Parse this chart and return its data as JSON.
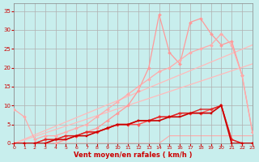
{
  "background_color": "#c8eeed",
  "grid_color": "#b0b0b0",
  "xlabel": "Vent moyen/en rafales ( km/h )",
  "ylim": [
    0,
    37
  ],
  "xlim": [
    0,
    23
  ],
  "yticks": [
    0,
    5,
    10,
    15,
    20,
    25,
    30,
    35
  ],
  "xticks": [
    0,
    1,
    2,
    3,
    4,
    5,
    6,
    7,
    8,
    9,
    10,
    11,
    12,
    13,
    14,
    15,
    16,
    17,
    18,
    19,
    20,
    21,
    22,
    23
  ],
  "series": [
    {
      "x": [
        0,
        1,
        2,
        3,
        4,
        5,
        6,
        7,
        8,
        9,
        10,
        11,
        12,
        13,
        14,
        15,
        16,
        17,
        18,
        19,
        20,
        21,
        22,
        23
      ],
      "y": [
        0,
        0,
        0,
        0,
        0,
        0,
        0,
        0,
        0,
        0,
        0,
        0,
        0,
        0,
        0,
        2,
        2,
        2,
        2,
        2,
        2,
        2,
        2,
        2
      ],
      "color": "#ffaaaa",
      "marker": null,
      "markersize": 0,
      "linewidth": 0.8,
      "zorder": 1
    },
    {
      "x": [
        0,
        23
      ],
      "y": [
        0,
        26
      ],
      "color": "#ffbbbb",
      "marker": null,
      "markersize": 0,
      "linewidth": 0.9,
      "zorder": 2
    },
    {
      "x": [
        0,
        23
      ],
      "y": [
        0,
        21
      ],
      "color": "#ffbbbb",
      "marker": null,
      "markersize": 0,
      "linewidth": 0.9,
      "zorder": 2
    },
    {
      "x": [
        0,
        1,
        2,
        3,
        4,
        5,
        6,
        7,
        8,
        9,
        10,
        11,
        12,
        13,
        14,
        15,
        16,
        17,
        18,
        19,
        20,
        21,
        22,
        23
      ],
      "y": [
        0,
        0,
        0,
        0,
        0,
        1,
        2,
        3,
        4,
        6,
        8,
        10,
        14,
        20,
        34,
        24,
        21,
        32,
        33,
        29,
        26,
        27,
        18,
        3
      ],
      "color": "#ff9999",
      "marker": "D",
      "markersize": 2.0,
      "linewidth": 0.9,
      "zorder": 3
    },
    {
      "x": [
        0,
        1,
        2,
        3,
        4,
        5,
        6,
        7,
        8,
        9,
        10,
        11,
        12,
        13,
        14,
        15,
        16,
        17,
        18,
        19,
        20,
        21,
        22,
        23
      ],
      "y": [
        9,
        7,
        1,
        2,
        2,
        3,
        4,
        5,
        7,
        9,
        11,
        13,
        15,
        17,
        19,
        20,
        22,
        24,
        25,
        26,
        29,
        26,
        18,
        3
      ],
      "color": "#ffaaaa",
      "marker": "D",
      "markersize": 2.0,
      "linewidth": 0.9,
      "zorder": 3
    },
    {
      "x": [
        0,
        1,
        2,
        3,
        4,
        5,
        6,
        7,
        8,
        9,
        10,
        11,
        12,
        13,
        14,
        15,
        16,
        17,
        18,
        19,
        20,
        21,
        22,
        23
      ],
      "y": [
        0,
        0,
        0,
        0,
        1,
        1,
        2,
        2,
        3,
        4,
        5,
        5,
        6,
        6,
        6,
        7,
        7,
        8,
        8,
        8,
        10,
        0,
        0,
        0
      ],
      "color": "#cc0000",
      "marker": "s",
      "markersize": 2.0,
      "linewidth": 1.2,
      "zorder": 6
    },
    {
      "x": [
        0,
        1,
        2,
        3,
        4,
        5,
        6,
        7,
        8,
        9,
        10,
        11,
        12,
        13,
        14,
        15,
        16,
        17,
        18,
        19,
        20,
        21,
        22,
        23
      ],
      "y": [
        0,
        0,
        0,
        1,
        1,
        2,
        2,
        3,
        3,
        4,
        5,
        5,
        6,
        6,
        7,
        7,
        8,
        8,
        9,
        9,
        10,
        1,
        0,
        0
      ],
      "color": "#dd2222",
      "marker": "+",
      "markersize": 3.0,
      "linewidth": 1.0,
      "zorder": 5
    },
    {
      "x": [
        0,
        1,
        2,
        3,
        4,
        5,
        6,
        7,
        8,
        9,
        10,
        11,
        12,
        13,
        14,
        15,
        16,
        17,
        18,
        19,
        20,
        21,
        22,
        23
      ],
      "y": [
        0,
        0,
        0,
        1,
        1,
        2,
        2,
        3,
        3,
        4,
        5,
        5,
        5,
        6,
        7,
        7,
        8,
        8,
        8,
        9,
        10,
        1,
        0,
        0
      ],
      "color": "#ff5555",
      "marker": "D",
      "markersize": 2.0,
      "linewidth": 1.0,
      "zorder": 4
    }
  ]
}
